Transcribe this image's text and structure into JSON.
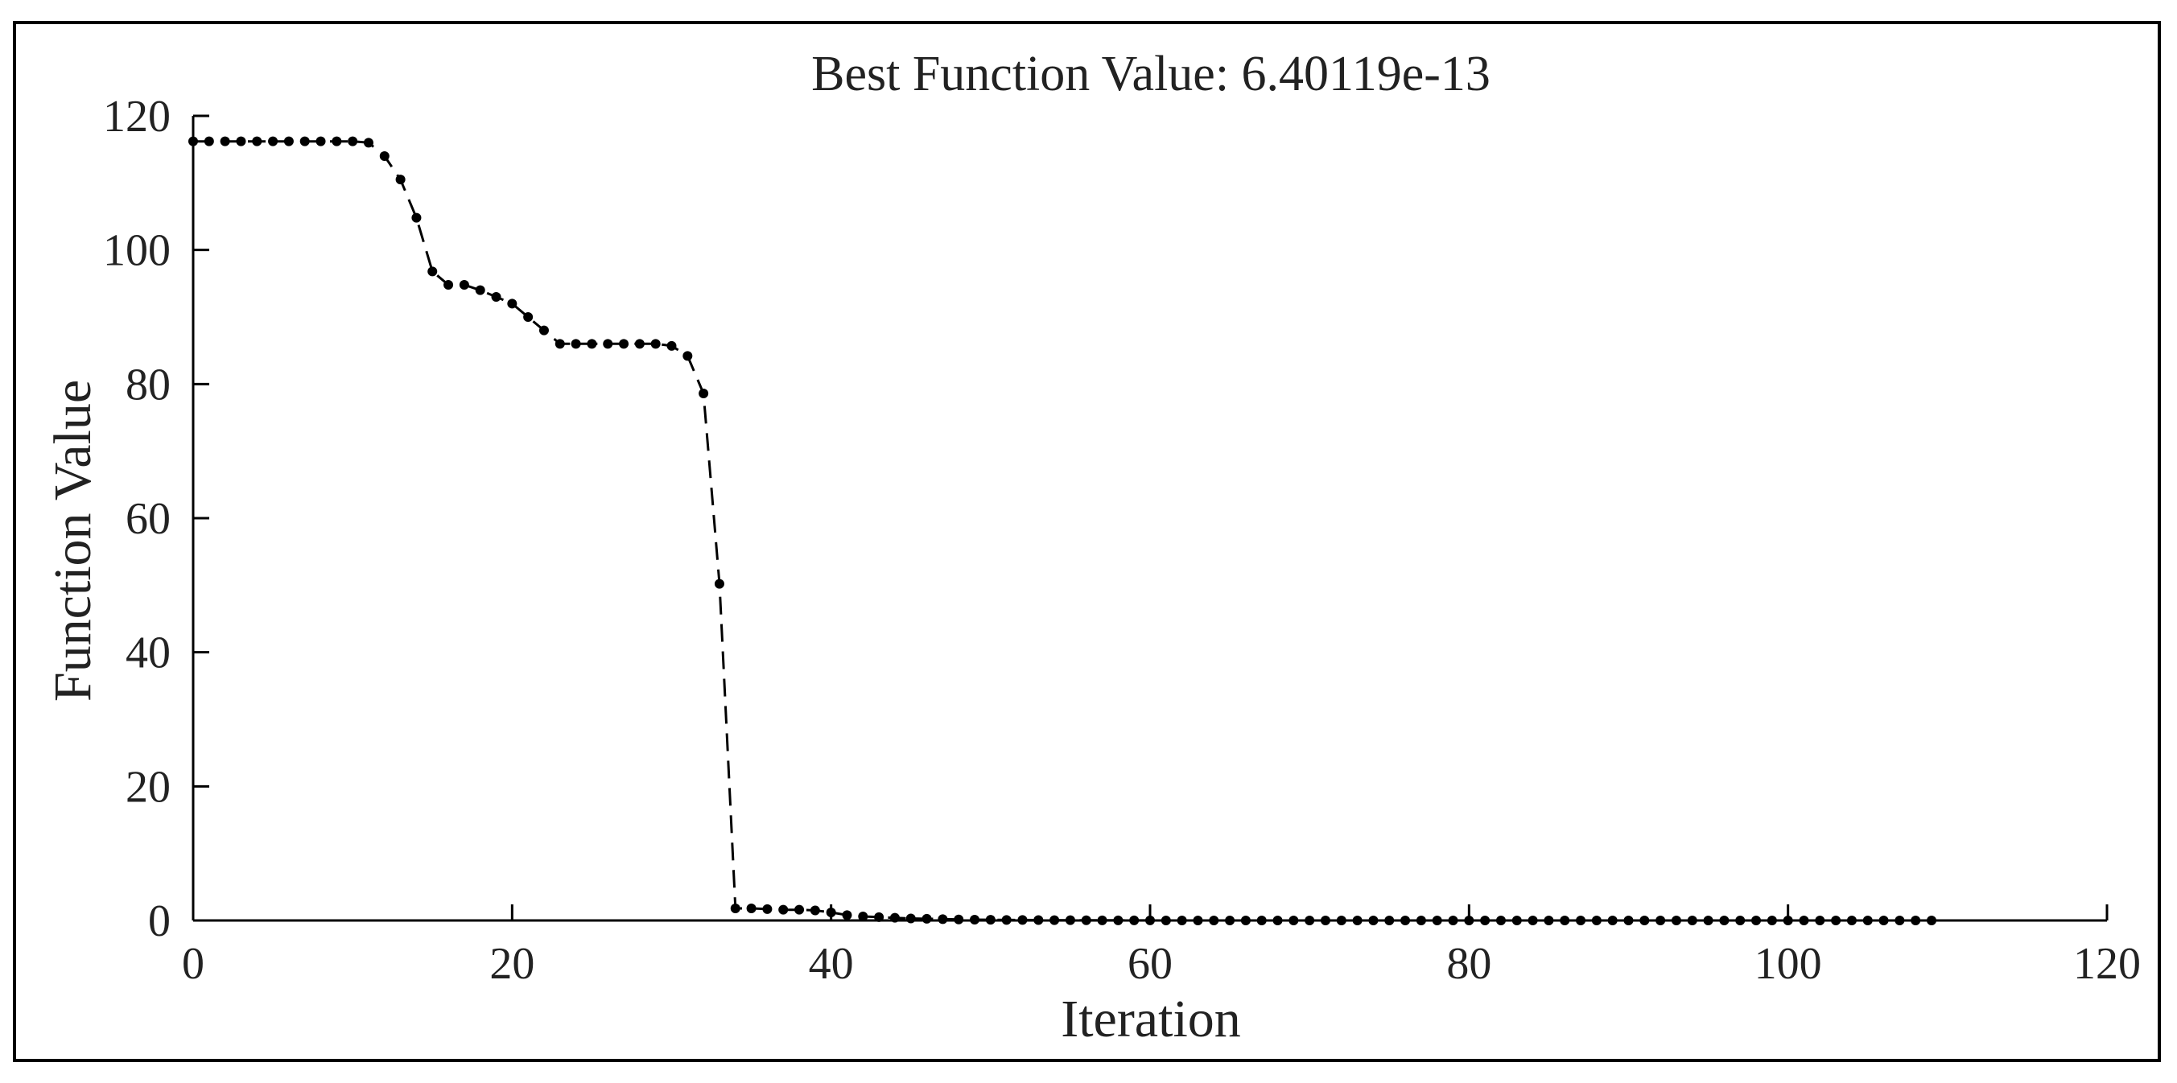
{
  "chart_data": {
    "type": "line",
    "title": "Best Function Value: 6.40119e-13",
    "xlabel": "Iteration",
    "ylabel": "Function Value",
    "xlim": [
      0,
      120
    ],
    "ylim": [
      0,
      120
    ],
    "xticks": [
      0,
      20,
      40,
      60,
      80,
      100,
      120
    ],
    "yticks": [
      0,
      20,
      40,
      60,
      80,
      100,
      120
    ],
    "xtick_labels": [
      "0",
      "20",
      "40",
      "60",
      "80",
      "100",
      "120"
    ],
    "ytick_labels": [
      "0",
      "20",
      "40",
      "60",
      "80",
      "100",
      "120"
    ],
    "grid": false,
    "line_style": "dashed",
    "marker": "dot",
    "colors": {
      "line": "#000000",
      "axis": "#000000",
      "frame": "#000000",
      "background": "#ffffff"
    },
    "series": [
      {
        "x": [
          0,
          1,
          2,
          3,
          4,
          5,
          6,
          7,
          8,
          9,
          10,
          11,
          12,
          13,
          14,
          15,
          16,
          17,
          18,
          19,
          20,
          21,
          22,
          23,
          24,
          25,
          26,
          27,
          28,
          29,
          30,
          31,
          32,
          33,
          34,
          35,
          36,
          37,
          38,
          39,
          40,
          41,
          42,
          43,
          44,
          45,
          46,
          47,
          48,
          49,
          50,
          51,
          52,
          53,
          54,
          55,
          56,
          57,
          58,
          59,
          60,
          61,
          62,
          63,
          64,
          65,
          66,
          67,
          68,
          69,
          70,
          71,
          72,
          73,
          74,
          75,
          76,
          77,
          78,
          79,
          80,
          81,
          82,
          83,
          84,
          85,
          86,
          87,
          88,
          89,
          90,
          91,
          92,
          93,
          94,
          95,
          96,
          97,
          98,
          99,
          100,
          101,
          102,
          103,
          104,
          105,
          106,
          107,
          108,
          109
        ],
        "y": [
          116.2,
          116.2,
          116.2,
          116.2,
          116.2,
          116.2,
          116.2,
          116.2,
          116.2,
          116.2,
          116.2,
          116.0,
          114.0,
          110.5,
          104.8,
          96.8,
          94.8,
          94.8,
          94.0,
          93.0,
          92.0,
          90.0,
          88.0,
          86.0,
          86.0,
          86.0,
          86.0,
          86.0,
          86.0,
          86.0,
          85.7,
          84.2,
          78.6,
          50.2,
          1.8,
          1.8,
          1.7,
          1.6,
          1.6,
          1.5,
          1.2,
          0.8,
          0.6,
          0.5,
          0.4,
          0.3,
          0.25,
          0.2,
          0.15,
          0.12,
          0.1,
          0.08,
          0.07,
          0.06,
          0.05,
          0.04,
          0.03,
          0.02,
          0.02,
          0.01,
          0.01,
          0,
          0,
          0,
          0,
          0,
          0,
          0,
          0,
          0,
          0,
          0,
          0,
          0,
          0,
          0,
          0,
          0,
          0,
          0,
          0,
          0,
          0,
          0,
          0,
          0,
          0,
          0,
          0,
          0,
          0,
          0,
          0,
          0,
          0,
          0,
          0,
          0,
          0,
          0,
          0,
          0,
          0,
          0,
          0,
          0,
          0,
          0,
          0,
          0
        ]
      }
    ]
  }
}
